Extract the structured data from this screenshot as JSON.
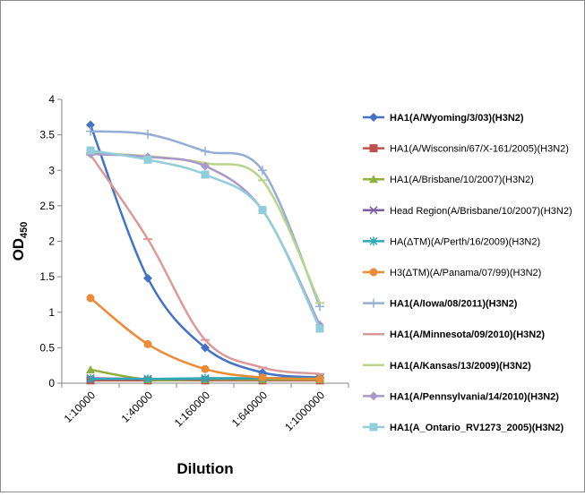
{
  "chart_data": {
    "type": "line",
    "xlabel": "Dilution",
    "ylabel": "OD",
    "ylabel_subscript": "450",
    "categories": [
      "1:10000",
      "1:40000",
      "1:160000",
      "1:640000",
      "1:1000000"
    ],
    "ylim": [
      0,
      4
    ],
    "yticks": [
      "0",
      "0.5",
      "1",
      "1.5",
      "2",
      "2.5",
      "3",
      "3.5",
      "4"
    ],
    "grid": false,
    "legend_position": "right",
    "series": [
      {
        "name": "HA1(A/Wyoming/3/03)(H3N2)",
        "bold": true,
        "color": "#4472c4",
        "marker": "diamond",
        "values": [
          3.64,
          1.48,
          0.5,
          0.15,
          0.08
        ]
      },
      {
        "name": "HA1(A/Wisconsin/67/X-161/2005)(H3N2)",
        "bold": false,
        "color": "#c0504d",
        "marker": "square",
        "values": [
          0.04,
          0.04,
          0.04,
          0.04,
          0.04
        ]
      },
      {
        "name": "HA1(A/Brisbane/10/2007)(H3N2)",
        "bold": false,
        "color": "#8fb03e",
        "marker": "triangle",
        "values": [
          0.19,
          0.05,
          0.05,
          0.05,
          0.05
        ]
      },
      {
        "name": "Head Region(A/Brisbane/10/2007)(H3N2)",
        "bold": false,
        "color": "#7a5ea6",
        "marker": "x",
        "values": [
          0.07,
          0.06,
          0.06,
          0.07,
          0.07
        ]
      },
      {
        "name": "HA(ΔTM)(A/Perth/16/2009)(H3N2)",
        "bold": false,
        "color": "#2fa8b6",
        "marker": "star",
        "values": [
          0.06,
          0.06,
          0.07,
          0.07,
          0.07
        ]
      },
      {
        "name": "H3(ΔTM)(A/Panama/07/99)(H3N2)",
        "bold": false,
        "color": "#ed8a35",
        "marker": "circle",
        "values": [
          1.2,
          0.55,
          0.2,
          0.08,
          0.06
        ]
      },
      {
        "name": "HA1(A/Iowa/08/2011)(H3N2)",
        "bold": true,
        "color": "#95aed6",
        "marker": "plus",
        "values": [
          3.55,
          3.51,
          3.27,
          3.0,
          1.08
        ]
      },
      {
        "name": "HA1(A/Minnesota/09/2010)(H3N2)",
        "bold": true,
        "color": "#db9a98",
        "marker": "dash",
        "values": [
          3.22,
          2.03,
          0.61,
          0.22,
          0.13
        ]
      },
      {
        "name": "HA1(A/Kansas/13/2009)(H3N2)",
        "bold": true,
        "color": "#b9d58c",
        "marker": "dash",
        "values": [
          3.25,
          3.2,
          3.1,
          2.86,
          1.13
        ]
      },
      {
        "name": "HA1(A/Pennsylvania/14/2010)(H3N2)",
        "bold": true,
        "color": "#a998c8",
        "marker": "diamond",
        "values": [
          3.23,
          3.19,
          3.06,
          2.44,
          0.82
        ]
      },
      {
        "name": "HA1(A_Ontario_RV1273_2005)(H3N2)",
        "bold": true,
        "color": "#92cddc",
        "marker": "square",
        "values": [
          3.28,
          3.15,
          2.94,
          2.44,
          0.77
        ]
      }
    ]
  }
}
